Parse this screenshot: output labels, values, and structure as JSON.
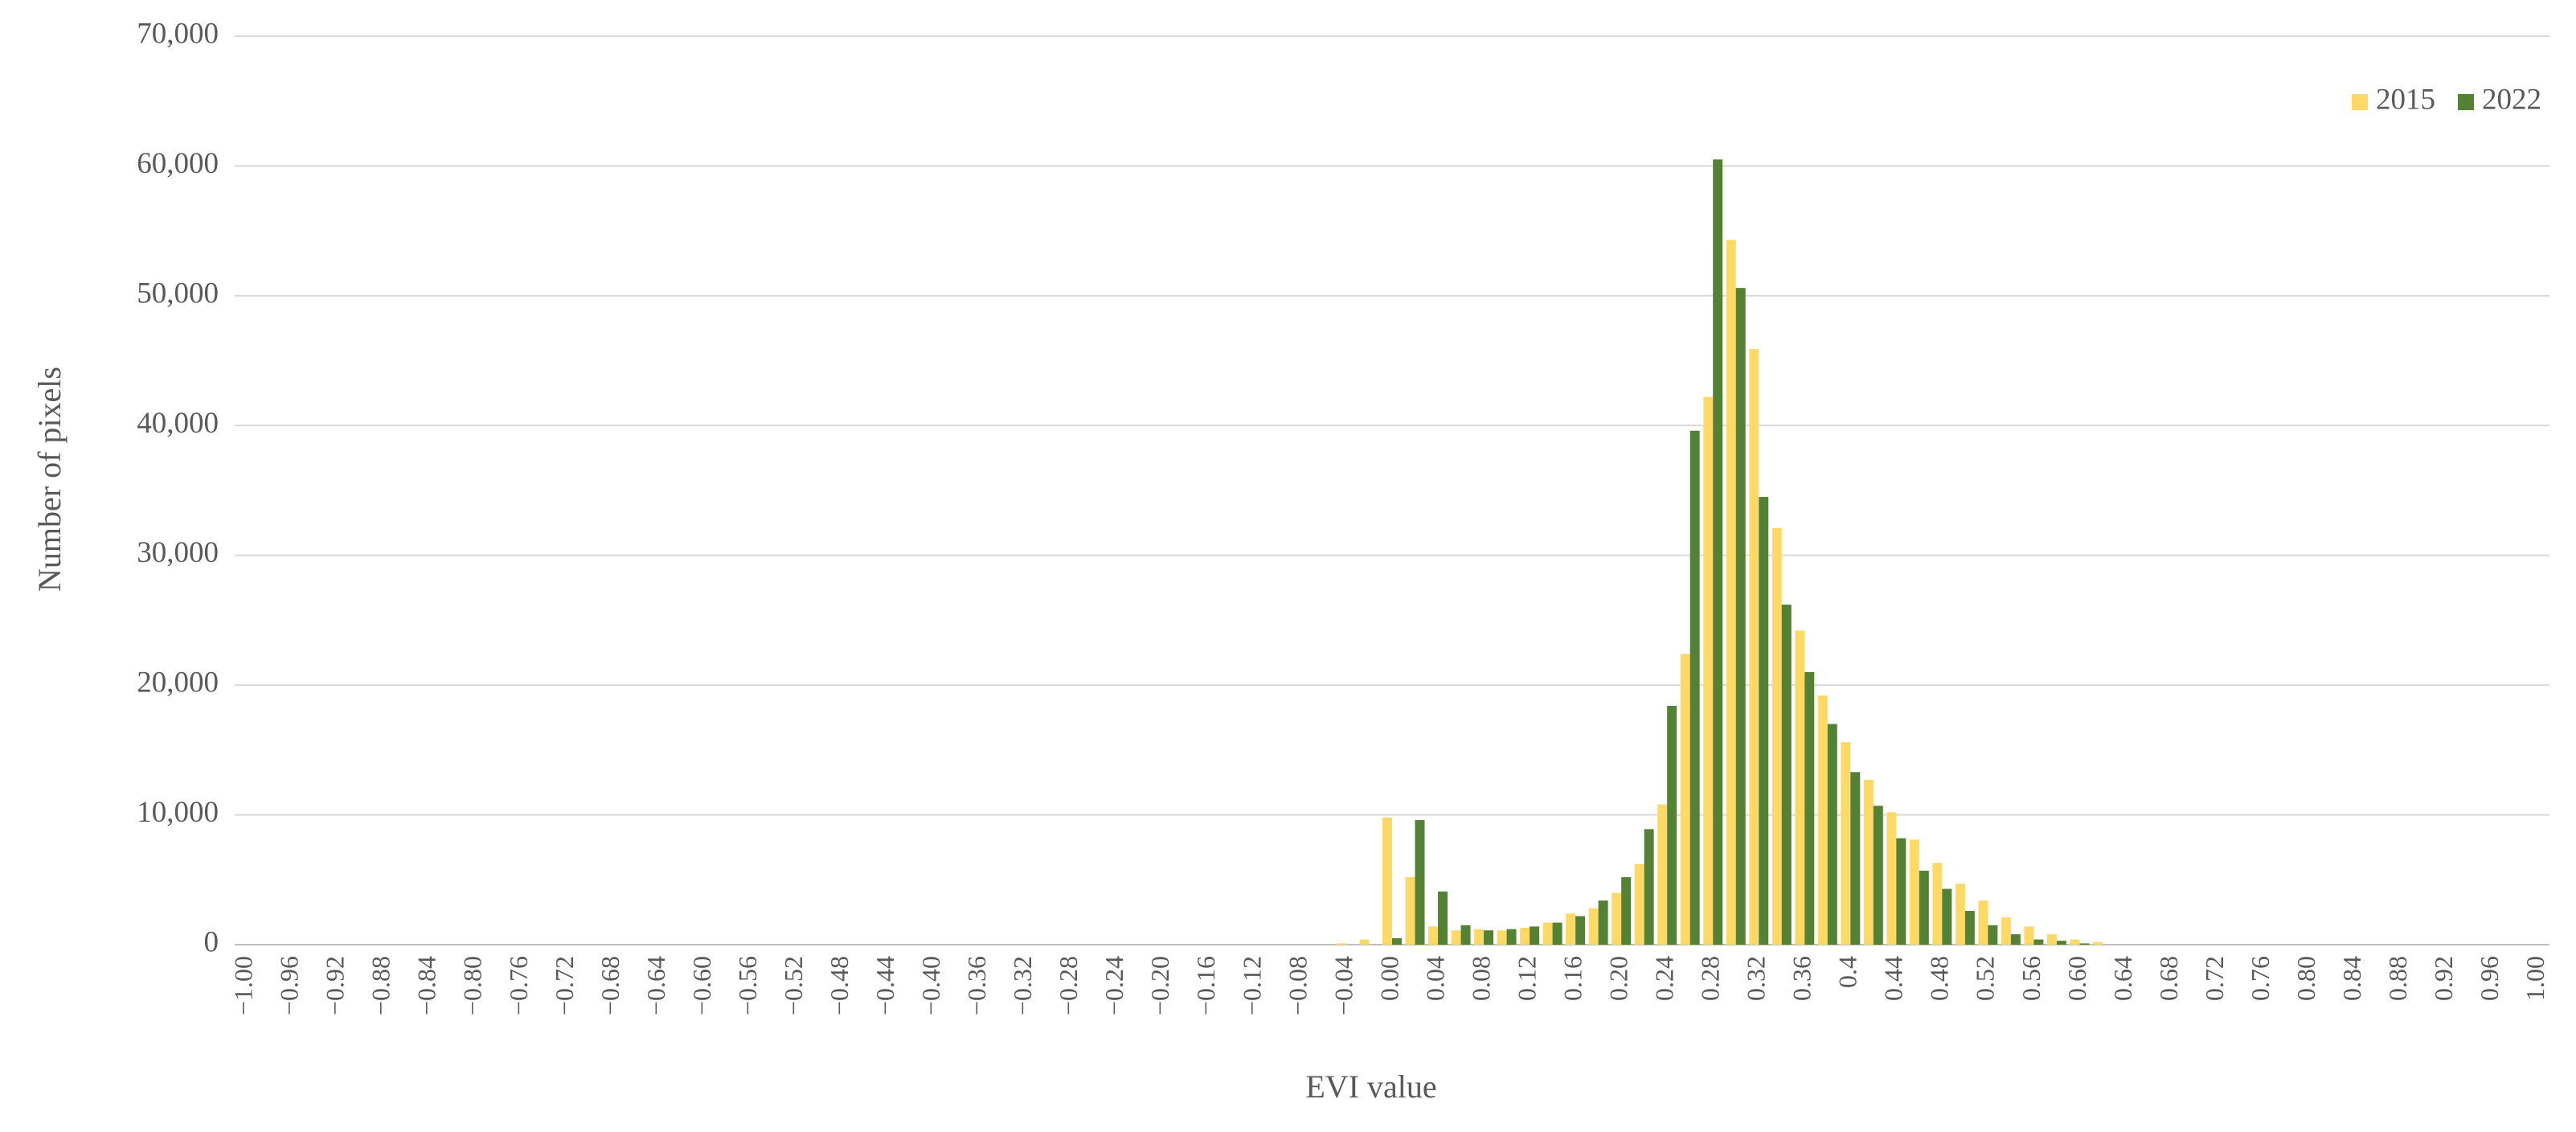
{
  "chart_data": {
    "type": "grouped-bar",
    "y_label": "Number of pixels",
    "x_label": "EVI value",
    "categories": [
      "−1.00",
      null,
      "−0.96",
      null,
      "−0.92",
      null,
      "−0.88",
      null,
      "−0.84",
      null,
      "−0.80",
      null,
      "−0.76",
      null,
      "−0.72",
      null,
      "−0.68",
      null,
      "−0.64",
      null,
      "−0.60",
      null,
      "−0.56",
      null,
      "−0.52",
      null,
      "−0.48",
      null,
      "−0.44",
      null,
      "−0.40",
      null,
      "−0.36",
      null,
      "−0.32",
      null,
      "−0.28",
      null,
      "−0.24",
      null,
      "−0.20",
      null,
      "−0.16",
      null,
      "−0.12",
      null,
      "−0.08",
      null,
      "−0.04",
      null,
      "0.00",
      null,
      "0.04",
      null,
      "0.08",
      null,
      "0.12",
      null,
      "0.16",
      null,
      "0.20",
      null,
      "0.24",
      null,
      "0.28",
      null,
      "0.32",
      null,
      "0.36",
      null,
      "0.4",
      null,
      "0.44",
      null,
      "0.48",
      null,
      "0.52",
      null,
      "0.56",
      null,
      "0.60",
      null,
      "0.64",
      null,
      "0.68",
      null,
      "0.72",
      null,
      "0.76",
      null,
      "0.80",
      null,
      "0.84",
      null,
      "0.88",
      null,
      "0.92",
      null,
      "0.96",
      null,
      "1.00"
    ],
    "series": [
      {
        "name": "2015",
        "color": "#ffd966",
        "values": [
          0,
          0,
          0,
          0,
          0,
          0,
          0,
          0,
          0,
          0,
          0,
          0,
          0,
          0,
          0,
          0,
          0,
          0,
          0,
          0,
          0,
          0,
          0,
          0,
          0,
          0,
          0,
          0,
          0,
          0,
          0,
          0,
          0,
          0,
          0,
          0,
          0,
          0,
          0,
          0,
          0,
          0,
          0,
          0,
          0,
          0,
          0,
          0,
          100,
          400,
          9800,
          5200,
          1400,
          1100,
          1200,
          1100,
          1300,
          1700,
          2400,
          2800,
          4000,
          6200,
          10800,
          22400,
          42200,
          54300,
          45900,
          32100,
          24200,
          19200,
          15600,
          12700,
          10200,
          8100,
          6300,
          4700,
          3400,
          2100,
          1400,
          800,
          400,
          200,
          0,
          0,
          0,
          0,
          0,
          0,
          0,
          0,
          0,
          0,
          0,
          0,
          0,
          0,
          0,
          0,
          0,
          0,
          0
        ]
      },
      {
        "name": "2022",
        "color": "#548235",
        "values": [
          0,
          0,
          0,
          0,
          0,
          0,
          0,
          0,
          0,
          0,
          0,
          0,
          0,
          0,
          0,
          0,
          0,
          0,
          0,
          0,
          0,
          0,
          0,
          0,
          0,
          0,
          0,
          0,
          0,
          0,
          0,
          0,
          0,
          0,
          0,
          0,
          0,
          0,
          0,
          0,
          0,
          0,
          0,
          0,
          0,
          0,
          0,
          0,
          0,
          0,
          500,
          9600,
          4100,
          1500,
          1100,
          1200,
          1400,
          1700,
          2200,
          3400,
          5200,
          8900,
          18400,
          39600,
          60500,
          50600,
          34500,
          26200,
          21000,
          17000,
          13300,
          10700,
          8200,
          5700,
          4300,
          2600,
          1500,
          800,
          400,
          300,
          100,
          0,
          0,
          0,
          0,
          0,
          0,
          0,
          0,
          0,
          0,
          0,
          0,
          0,
          0,
          0,
          0,
          0,
          0,
          0,
          0
        ]
      }
    ],
    "ylim": [
      0,
      70000
    ],
    "yticks": [
      0,
      {
        "value": 10000,
        "label": "10,000"
      },
      {
        "value": 20000,
        "label": "20,000"
      },
      {
        "value": 30000,
        "label": "30,000"
      },
      {
        "value": 40000,
        "label": "40,000"
      },
      {
        "value": 50000,
        "label": "50,000"
      },
      {
        "value": 60000,
        "label": "60,000"
      },
      {
        "value": 70000,
        "label": "70,000"
      }
    ],
    "grid": true,
    "legend": "top-right"
  }
}
